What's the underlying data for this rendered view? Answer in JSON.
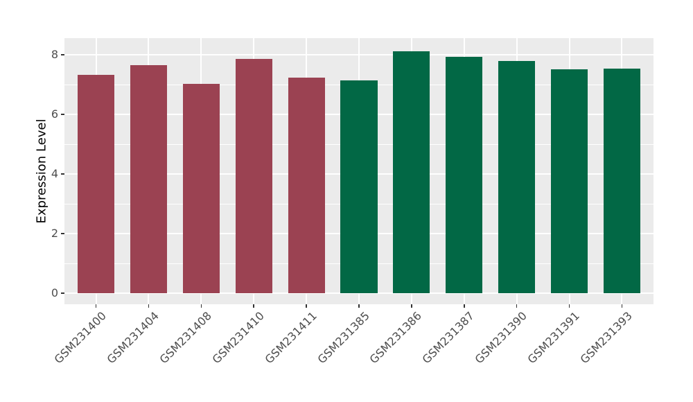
{
  "chart_data": {
    "type": "bar",
    "title": "",
    "xlabel": "",
    "ylabel": "Expression Level",
    "categories": [
      "GSM231400",
      "GSM231404",
      "GSM231408",
      "GSM231410",
      "GSM231411",
      "GSM231385",
      "GSM231386",
      "GSM231387",
      "GSM231390",
      "GSM231391",
      "GSM231393"
    ],
    "values": [
      7.33,
      7.66,
      7.03,
      7.87,
      7.23,
      7.14,
      8.12,
      7.93,
      7.8,
      7.51,
      7.53
    ],
    "bar_colors": [
      "#9B4252",
      "#9B4252",
      "#9B4252",
      "#9B4252",
      "#9B4252",
      "#026845",
      "#026845",
      "#026845",
      "#026845",
      "#026845",
      "#026845"
    ],
    "groups": [
      {
        "name": "left-group",
        "color": "#9B4252",
        "categories": [
          "GSM231400",
          "GSM231404",
          "GSM231408",
          "GSM231410",
          "GSM231411"
        ]
      },
      {
        "name": "right-group",
        "color": "#026845",
        "categories": [
          "GSM231385",
          "GSM231386",
          "GSM231387",
          "GSM231390",
          "GSM231391",
          "GSM231393"
        ]
      }
    ],
    "yticks": [
      0,
      2,
      4,
      6,
      8
    ],
    "yticks_minor": [
      1,
      3,
      5,
      7
    ],
    "ylim": [
      0,
      8.56
    ],
    "grid": "major and minor horizontal, major vertical at category centers",
    "legend": "none",
    "panel_background": "#EBEBEB",
    "gridline_color": "#FFFFFF",
    "axis_text_color": "#4D4D4D",
    "x_label_rotation_deg": 45
  }
}
